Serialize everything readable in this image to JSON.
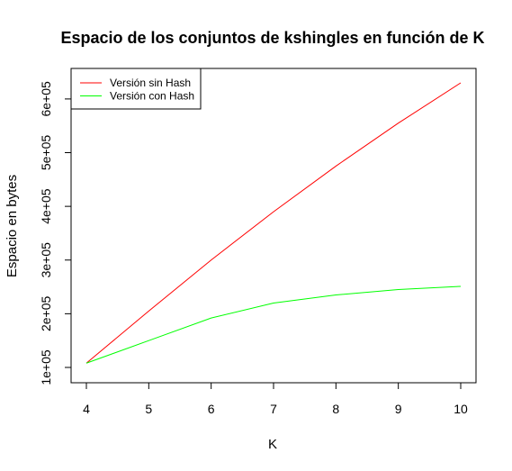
{
  "chart_data": {
    "type": "line",
    "title": "Espacio de los conjuntos de kshingles en función de K",
    "xlabel": "K",
    "ylabel": "Espacio en bytes",
    "x": [
      4,
      5,
      6,
      7,
      8,
      9,
      10
    ],
    "xlim": [
      4,
      10
    ],
    "ylim": [
      100000,
      630000
    ],
    "xticks": [
      "4",
      "5",
      "6",
      "7",
      "8",
      "9",
      "10"
    ],
    "yticks": [
      "1e+05",
      "2e+05",
      "3e+05",
      "4e+05",
      "5e+05",
      "6e+05"
    ],
    "ytick_values": [
      100000,
      200000,
      300000,
      400000,
      500000,
      600000
    ],
    "grid": false,
    "legend_position": "top-left",
    "series": [
      {
        "name": "Versión sin Hash",
        "color": "#ff0000",
        "values": [
          108000,
          205000,
          300000,
          390000,
          475000,
          555000,
          630000
        ]
      },
      {
        "name": "Versión con Hash",
        "color": "#00ff00",
        "values": [
          108000,
          150000,
          192000,
          220000,
          235000,
          245000,
          251000
        ]
      }
    ]
  }
}
